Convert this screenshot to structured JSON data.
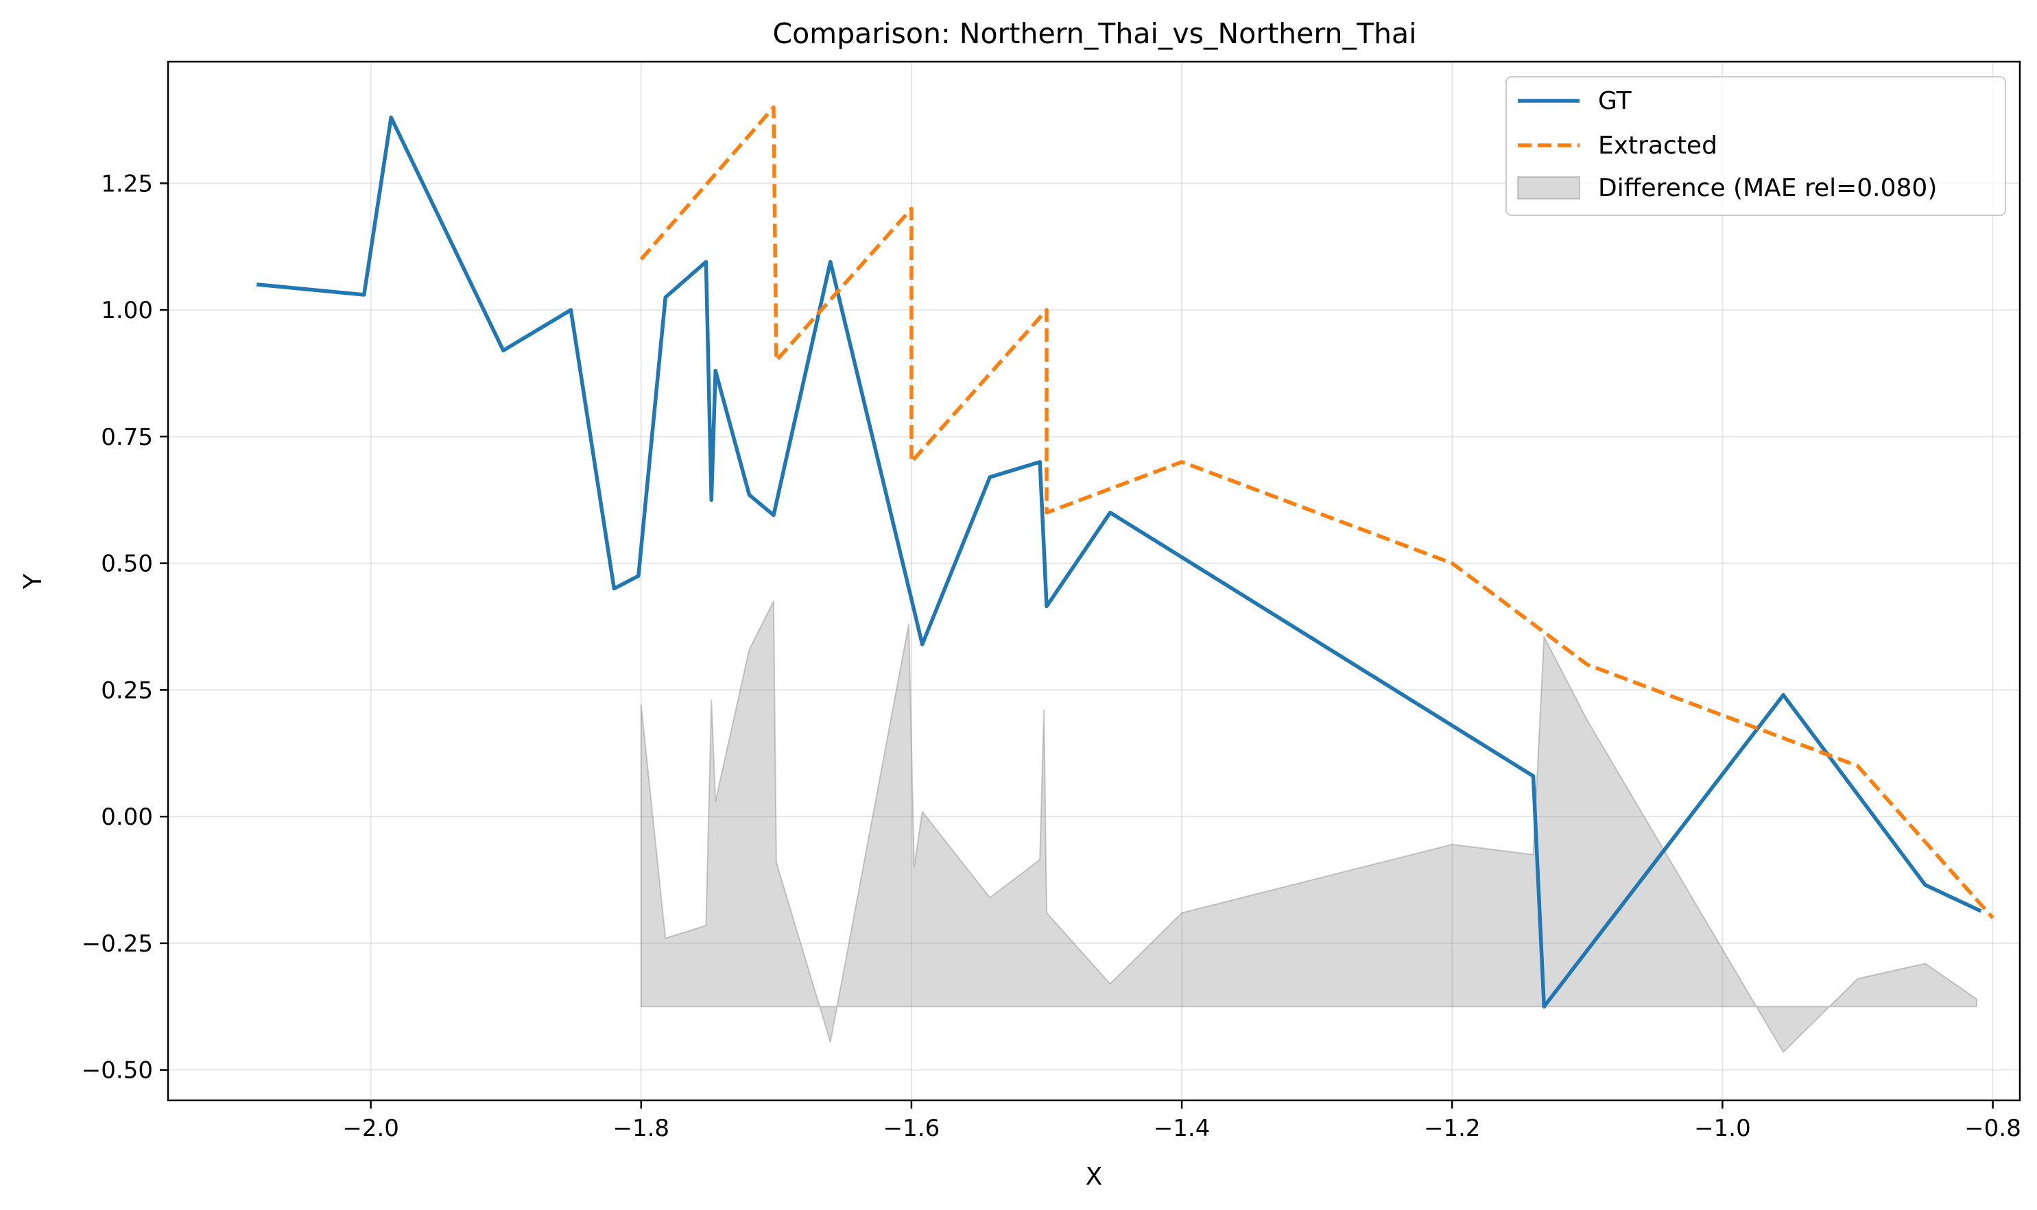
{
  "chart_data": {
    "type": "line",
    "title": "Comparison: Northern_Thai_vs_Northern_Thai",
    "xlabel": "X",
    "ylabel": "Y",
    "xlim": [
      -2.15,
      -0.78
    ],
    "ylim": [
      -0.56,
      1.49
    ],
    "grid": true,
    "legend_position": "top-right",
    "x_ticks": [
      {
        "value": -2.0,
        "label": "−2.0"
      },
      {
        "value": -1.8,
        "label": "−1.8"
      },
      {
        "value": -1.6,
        "label": "−1.6"
      },
      {
        "value": -1.4,
        "label": "−1.4"
      },
      {
        "value": -1.2,
        "label": "−1.2"
      },
      {
        "value": -1.0,
        "label": "−1.0"
      },
      {
        "value": -0.8,
        "label": "−0.8"
      }
    ],
    "y_ticks": [
      {
        "value": -0.5,
        "label": "−0.50"
      },
      {
        "value": -0.25,
        "label": "−0.25"
      },
      {
        "value": 0.0,
        "label": "0.00"
      },
      {
        "value": 0.25,
        "label": "0.25"
      },
      {
        "value": 0.5,
        "label": "0.50"
      },
      {
        "value": 0.75,
        "label": "0.75"
      },
      {
        "value": 1.0,
        "label": "1.00"
      },
      {
        "value": 1.25,
        "label": "1.25"
      }
    ],
    "series": [
      {
        "name": "GT",
        "color": "#1f77b4",
        "style": "solid",
        "points": [
          [
            -2.083,
            1.05
          ],
          [
            -2.005,
            1.03
          ],
          [
            -1.985,
            1.38
          ],
          [
            -1.902,
            0.92
          ],
          [
            -1.852,
            1.0
          ],
          [
            -1.82,
            0.45
          ],
          [
            -1.802,
            0.475
          ],
          [
            -1.782,
            1.025
          ],
          [
            -1.752,
            1.095
          ],
          [
            -1.748,
            0.625
          ],
          [
            -1.745,
            0.88
          ],
          [
            -1.72,
            0.635
          ],
          [
            -1.702,
            0.595
          ],
          [
            -1.66,
            1.095
          ],
          [
            -1.592,
            0.34
          ],
          [
            -1.542,
            0.67
          ],
          [
            -1.505,
            0.7
          ],
          [
            -1.5,
            0.415
          ],
          [
            -1.453,
            0.6
          ],
          [
            -1.14,
            0.08
          ],
          [
            -1.132,
            -0.375
          ],
          [
            -0.955,
            0.24
          ],
          [
            -0.85,
            -0.135
          ],
          [
            -0.81,
            -0.185
          ]
        ]
      },
      {
        "name": "Extracted",
        "color": "#ff7f0e",
        "style": "dashed",
        "points": [
          [
            -1.8,
            1.1
          ],
          [
            -1.702,
            1.4
          ],
          [
            -1.7,
            0.9
          ],
          [
            -1.6,
            1.2
          ],
          [
            -1.6,
            0.7
          ],
          [
            -1.5,
            1.0
          ],
          [
            -1.5,
            0.6
          ],
          [
            -1.4,
            0.7
          ],
          [
            -1.2,
            0.5
          ],
          [
            -1.1,
            0.3
          ],
          [
            -0.9,
            0.1
          ],
          [
            -0.8,
            -0.2
          ]
        ]
      }
    ],
    "difference_area": {
      "name": "Difference (MAE rel=0.080)",
      "color": "#808080",
      "baseline": -0.375,
      "points": [
        [
          -1.8,
          0.22
        ],
        [
          -1.782,
          -0.24
        ],
        [
          -1.752,
          -0.215
        ],
        [
          -1.748,
          0.23
        ],
        [
          -1.745,
          0.03
        ],
        [
          -1.72,
          0.33
        ],
        [
          -1.702,
          0.425
        ],
        [
          -1.7,
          -0.09
        ],
        [
          -1.66,
          -0.445
        ],
        [
          -1.602,
          0.38
        ],
        [
          -1.598,
          -0.1
        ],
        [
          -1.592,
          0.01
        ],
        [
          -1.542,
          -0.16
        ],
        [
          -1.505,
          -0.085
        ],
        [
          -1.502,
          0.21
        ],
        [
          -1.5,
          -0.19
        ],
        [
          -1.453,
          -0.33
        ],
        [
          -1.4,
          -0.19
        ],
        [
          -1.2,
          -0.055
        ],
        [
          -1.14,
          -0.075
        ],
        [
          -1.132,
          0.355
        ],
        [
          -1.1,
          0.19
        ],
        [
          -0.955,
          -0.465
        ],
        [
          -0.9,
          -0.32
        ],
        [
          -0.85,
          -0.29
        ],
        [
          -0.812,
          -0.36
        ],
        [
          -0.812,
          -0.375
        ]
      ]
    }
  }
}
